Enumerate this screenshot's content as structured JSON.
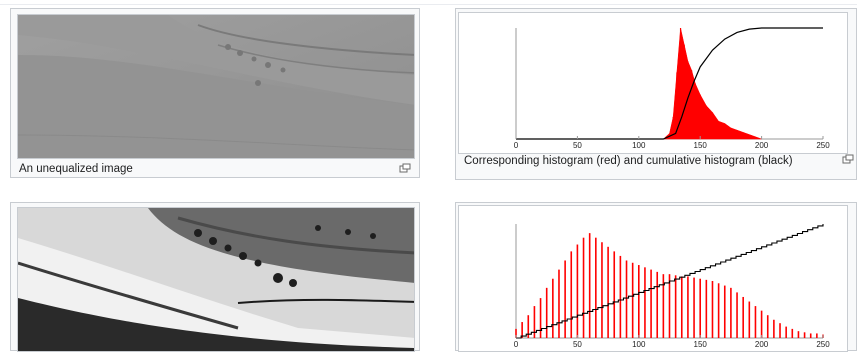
{
  "panels": {
    "top_left": {
      "caption": "An unequalized image"
    },
    "top_right": {
      "caption": "Corresponding histogram (red) and cumulative histogram (black)"
    }
  },
  "colors": {
    "histogram": "#ff0000",
    "cumulative": "#000000",
    "border": "#c8ccd1"
  },
  "icons": {
    "magnify": "magnify-icon"
  },
  "chart_data": [
    {
      "type": "bar",
      "title": "",
      "xlabel": "",
      "ylabel": "",
      "xlim": [
        0,
        250
      ],
      "x_ticks": [
        0,
        50,
        100,
        150,
        200,
        250
      ],
      "grid": false,
      "series": [
        {
          "name": "histogram (red)",
          "kind": "histogram-filled",
          "x": [
            120,
            125,
            128,
            131,
            134,
            137,
            140,
            143,
            146,
            150,
            155,
            160,
            165,
            170,
            175,
            180,
            185,
            190,
            195,
            200
          ],
          "values": [
            0,
            5,
            20,
            60,
            100,
            85,
            70,
            62,
            50,
            40,
            30,
            24,
            16,
            14,
            10,
            8,
            6,
            4,
            2,
            0
          ]
        },
        {
          "name": "cumulative histogram (black)",
          "kind": "line",
          "x": [
            0,
            120,
            130,
            135,
            140,
            145,
            150,
            160,
            170,
            180,
            190,
            200,
            250
          ],
          "values": [
            0,
            0,
            5,
            20,
            37,
            52,
            65,
            80,
            90,
            96,
            99,
            100,
            100
          ]
        }
      ]
    },
    {
      "type": "bar",
      "title": "",
      "xlabel": "",
      "ylabel": "",
      "xlim": [
        0,
        250
      ],
      "x_ticks": [
        0,
        50,
        100,
        150,
        200,
        250
      ],
      "grid": false,
      "series": [
        {
          "name": "histogram (red)",
          "kind": "histogram-spikes",
          "x": [
            0,
            5,
            10,
            15,
            20,
            25,
            30,
            35,
            40,
            45,
            50,
            55,
            60,
            65,
            70,
            75,
            80,
            85,
            90,
            95,
            100,
            105,
            110,
            115,
            120,
            125,
            130,
            135,
            140,
            145,
            150,
            155,
            160,
            165,
            170,
            175,
            180,
            185,
            190,
            195,
            200,
            205,
            210,
            215,
            220,
            225,
            230,
            235,
            240,
            245,
            250
          ],
          "values": [
            8,
            14,
            20,
            28,
            35,
            44,
            52,
            60,
            68,
            76,
            82,
            88,
            92,
            88,
            84,
            80,
            76,
            72,
            68,
            66,
            64,
            62,
            60,
            58,
            56,
            56,
            55,
            54,
            54,
            53,
            52,
            51,
            50,
            48,
            46,
            44,
            40,
            36,
            32,
            28,
            24,
            20,
            16,
            13,
            10,
            8,
            6,
            5,
            4,
            4,
            3
          ]
        },
        {
          "name": "cumulative histogram (black)",
          "kind": "staircase",
          "x": [
            0,
            250
          ],
          "values": [
            0,
            100
          ]
        }
      ]
    }
  ]
}
